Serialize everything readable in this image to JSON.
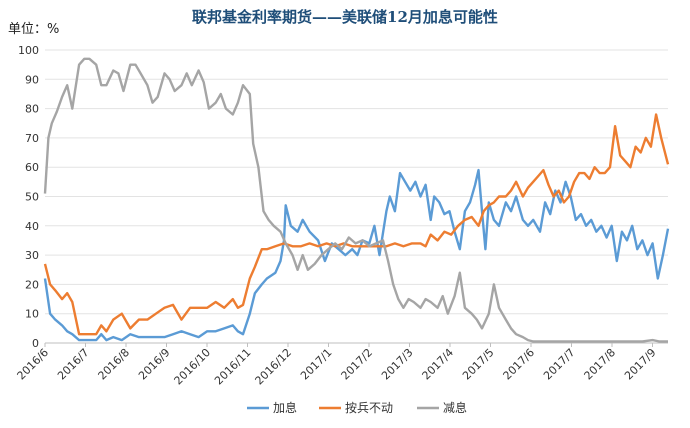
{
  "chart_data": {
    "type": "line",
    "title": "联邦基金利率期货——美联储12月加息可能性",
    "unit_label": "单位：%",
    "ylim": [
      0,
      100
    ],
    "y_ticks": [
      "0",
      "10",
      "20",
      "30",
      "40",
      "50",
      "60",
      "70",
      "80",
      "90",
      "100"
    ],
    "x_ticks": [
      "2016/6",
      "2016/7",
      "2016/8",
      "2016/9",
      "2016/10",
      "2016/11",
      "2016/12",
      "2017/1",
      "2017/2",
      "2017/3",
      "2017/4",
      "2017/5",
      "2017/6",
      "2017/7",
      "2017/8",
      "2017/9"
    ],
    "grid": true,
    "legend_position": "bottom",
    "series": [
      {
        "name": "加息",
        "color": "#5B9BD5",
        "points": [
          [
            0,
            22
          ],
          [
            0.3,
            10
          ],
          [
            0.6,
            8
          ],
          [
            1.0,
            6
          ],
          [
            1.3,
            4
          ],
          [
            1.6,
            3
          ],
          [
            2.0,
            1
          ],
          [
            2.5,
            1
          ],
          [
            3.0,
            1
          ],
          [
            3.3,
            3
          ],
          [
            3.6,
            1
          ],
          [
            4.0,
            2
          ],
          [
            4.5,
            1
          ],
          [
            5.0,
            3
          ],
          [
            5.5,
            2
          ],
          [
            6.0,
            2
          ],
          [
            6.5,
            2
          ],
          [
            7.0,
            2
          ],
          [
            7.5,
            3
          ],
          [
            8.0,
            4
          ],
          [
            8.5,
            3
          ],
          [
            9.0,
            2
          ],
          [
            9.5,
            4
          ],
          [
            10.0,
            4
          ],
          [
            10.5,
            5
          ],
          [
            11.0,
            6
          ],
          [
            11.3,
            4
          ],
          [
            11.6,
            3
          ],
          [
            12.0,
            10
          ],
          [
            12.3,
            17
          ],
          [
            12.7,
            20
          ],
          [
            13.0,
            22
          ],
          [
            13.5,
            24
          ],
          [
            13.8,
            28
          ],
          [
            14.0,
            35
          ],
          [
            14.1,
            47
          ],
          [
            14.4,
            40
          ],
          [
            14.8,
            38
          ],
          [
            15.1,
            42
          ],
          [
            15.5,
            38
          ],
          [
            16.0,
            35
          ],
          [
            16.4,
            28
          ],
          [
            16.8,
            34
          ],
          [
            17.2,
            32
          ],
          [
            17.6,
            30
          ],
          [
            18.0,
            32
          ],
          [
            18.3,
            30
          ],
          [
            18.6,
            35
          ],
          [
            19.0,
            34
          ],
          [
            19.3,
            40
          ],
          [
            19.6,
            30
          ],
          [
            20.0,
            45
          ],
          [
            20.2,
            50
          ],
          [
            20.5,
            45
          ],
          [
            20.8,
            58
          ],
          [
            21.1,
            55
          ],
          [
            21.4,
            52
          ],
          [
            21.7,
            55
          ],
          [
            22.0,
            50
          ],
          [
            22.3,
            54
          ],
          [
            22.6,
            42
          ],
          [
            22.8,
            50
          ],
          [
            23.1,
            48
          ],
          [
            23.4,
            44
          ],
          [
            23.7,
            45
          ],
          [
            24.0,
            38
          ],
          [
            24.3,
            32
          ],
          [
            24.6,
            45
          ],
          [
            24.9,
            48
          ],
          [
            25.2,
            54
          ],
          [
            25.4,
            59
          ],
          [
            25.6,
            45
          ],
          [
            25.8,
            32
          ],
          [
            26.0,
            48
          ],
          [
            26.3,
            42
          ],
          [
            26.6,
            40
          ],
          [
            27.0,
            48
          ],
          [
            27.3,
            45
          ],
          [
            27.6,
            50
          ],
          [
            28.0,
            42
          ],
          [
            28.3,
            40
          ],
          [
            28.6,
            42
          ],
          [
            29.0,
            38
          ],
          [
            29.3,
            48
          ],
          [
            29.6,
            44
          ],
          [
            29.9,
            52
          ],
          [
            30.2,
            48
          ],
          [
            30.5,
            55
          ],
          [
            30.8,
            50
          ],
          [
            31.1,
            42
          ],
          [
            31.4,
            44
          ],
          [
            31.7,
            40
          ],
          [
            32.0,
            42
          ],
          [
            32.3,
            38
          ],
          [
            32.6,
            40
          ],
          [
            32.9,
            36
          ],
          [
            33.2,
            40
          ],
          [
            33.5,
            28
          ],
          [
            33.8,
            38
          ],
          [
            34.1,
            35
          ],
          [
            34.4,
            40
          ],
          [
            34.7,
            32
          ],
          [
            35.0,
            35
          ],
          [
            35.3,
            30
          ],
          [
            35.6,
            34
          ],
          [
            35.9,
            22
          ],
          [
            36.2,
            30
          ],
          [
            36.5,
            39
          ]
        ]
      },
      {
        "name": "按兵不动",
        "color": "#ED7D31",
        "points": [
          [
            0,
            27
          ],
          [
            0.3,
            20
          ],
          [
            0.6,
            18
          ],
          [
            1.0,
            15
          ],
          [
            1.3,
            17
          ],
          [
            1.6,
            14
          ],
          [
            2.0,
            3
          ],
          [
            2.5,
            3
          ],
          [
            3.0,
            3
          ],
          [
            3.3,
            6
          ],
          [
            3.6,
            4
          ],
          [
            4.0,
            8
          ],
          [
            4.5,
            10
          ],
          [
            5.0,
            5
          ],
          [
            5.5,
            8
          ],
          [
            6.0,
            8
          ],
          [
            6.5,
            10
          ],
          [
            7.0,
            12
          ],
          [
            7.5,
            13
          ],
          [
            8.0,
            8
          ],
          [
            8.5,
            12
          ],
          [
            9.0,
            12
          ],
          [
            9.5,
            12
          ],
          [
            10.0,
            14
          ],
          [
            10.5,
            12
          ],
          [
            11.0,
            15
          ],
          [
            11.3,
            12
          ],
          [
            11.6,
            13
          ],
          [
            12.0,
            22
          ],
          [
            12.3,
            26
          ],
          [
            12.7,
            32
          ],
          [
            13.0,
            32
          ],
          [
            13.5,
            33
          ],
          [
            14.0,
            34
          ],
          [
            14.5,
            33
          ],
          [
            15.0,
            33
          ],
          [
            15.5,
            34
          ],
          [
            16.0,
            33
          ],
          [
            16.5,
            34
          ],
          [
            17.0,
            33
          ],
          [
            17.5,
            34
          ],
          [
            18.0,
            33
          ],
          [
            18.5,
            33
          ],
          [
            19.0,
            33
          ],
          [
            19.5,
            33
          ],
          [
            20.0,
            33
          ],
          [
            20.5,
            34
          ],
          [
            21.0,
            33
          ],
          [
            21.5,
            34
          ],
          [
            22.0,
            34
          ],
          [
            22.3,
            33
          ],
          [
            22.6,
            37
          ],
          [
            23.0,
            35
          ],
          [
            23.4,
            38
          ],
          [
            23.8,
            37
          ],
          [
            24.2,
            40
          ],
          [
            24.6,
            42
          ],
          [
            25.0,
            43
          ],
          [
            25.4,
            40
          ],
          [
            25.7,
            45
          ],
          [
            26.0,
            47
          ],
          [
            26.3,
            48
          ],
          [
            26.6,
            50
          ],
          [
            27.0,
            50
          ],
          [
            27.3,
            52
          ],
          [
            27.6,
            55
          ],
          [
            28.0,
            50
          ],
          [
            28.3,
            53
          ],
          [
            28.6,
            55
          ],
          [
            28.9,
            57
          ],
          [
            29.2,
            59
          ],
          [
            29.5,
            54
          ],
          [
            29.8,
            50
          ],
          [
            30.1,
            52
          ],
          [
            30.4,
            48
          ],
          [
            30.7,
            50
          ],
          [
            31.0,
            55
          ],
          [
            31.3,
            58
          ],
          [
            31.6,
            58
          ],
          [
            31.9,
            56
          ],
          [
            32.2,
            60
          ],
          [
            32.5,
            58
          ],
          [
            32.8,
            58
          ],
          [
            33.1,
            60
          ],
          [
            33.4,
            74
          ],
          [
            33.7,
            64
          ],
          [
            34.0,
            62
          ],
          [
            34.3,
            60
          ],
          [
            34.6,
            67
          ],
          [
            34.9,
            65
          ],
          [
            35.2,
            70
          ],
          [
            35.5,
            67
          ],
          [
            35.8,
            78
          ],
          [
            36.1,
            70
          ],
          [
            36.5,
            61
          ]
        ]
      },
      {
        "name": "减息",
        "color": "#A5A5A5",
        "points": [
          [
            0,
            51
          ],
          [
            0.2,
            70
          ],
          [
            0.4,
            75
          ],
          [
            0.7,
            79
          ],
          [
            1.0,
            84
          ],
          [
            1.3,
            88
          ],
          [
            1.6,
            80
          ],
          [
            2.0,
            95
          ],
          [
            2.3,
            97
          ],
          [
            2.6,
            97
          ],
          [
            3.0,
            95
          ],
          [
            3.3,
            88
          ],
          [
            3.6,
            88
          ],
          [
            4.0,
            93
          ],
          [
            4.3,
            92
          ],
          [
            4.6,
            86
          ],
          [
            5.0,
            95
          ],
          [
            5.3,
            95
          ],
          [
            5.6,
            92
          ],
          [
            6.0,
            88
          ],
          [
            6.3,
            82
          ],
          [
            6.6,
            84
          ],
          [
            7.0,
            92
          ],
          [
            7.3,
            90
          ],
          [
            7.6,
            86
          ],
          [
            8.0,
            88
          ],
          [
            8.3,
            92
          ],
          [
            8.6,
            88
          ],
          [
            9.0,
            93
          ],
          [
            9.3,
            89
          ],
          [
            9.6,
            80
          ],
          [
            10.0,
            82
          ],
          [
            10.3,
            85
          ],
          [
            10.6,
            80
          ],
          [
            11.0,
            78
          ],
          [
            11.3,
            82
          ],
          [
            11.6,
            88
          ],
          [
            12.0,
            85
          ],
          [
            12.2,
            68
          ],
          [
            12.5,
            60
          ],
          [
            12.8,
            45
          ],
          [
            13.1,
            42
          ],
          [
            13.4,
            40
          ],
          [
            13.8,
            38
          ],
          [
            14.1,
            34
          ],
          [
            14.5,
            30
          ],
          [
            14.8,
            25
          ],
          [
            15.1,
            30
          ],
          [
            15.4,
            25
          ],
          [
            15.8,
            27
          ],
          [
            16.2,
            30
          ],
          [
            16.6,
            32
          ],
          [
            17.0,
            34
          ],
          [
            17.4,
            32
          ],
          [
            17.8,
            36
          ],
          [
            18.2,
            34
          ],
          [
            18.6,
            35
          ],
          [
            19.0,
            33
          ],
          [
            19.4,
            34
          ],
          [
            19.8,
            35
          ],
          [
            20.1,
            28
          ],
          [
            20.4,
            20
          ],
          [
            20.7,
            15
          ],
          [
            21.0,
            12
          ],
          [
            21.3,
            15
          ],
          [
            21.6,
            14
          ],
          [
            22.0,
            12
          ],
          [
            22.3,
            15
          ],
          [
            22.6,
            14
          ],
          [
            23.0,
            12
          ],
          [
            23.3,
            16
          ],
          [
            23.6,
            10
          ],
          [
            24.0,
            16
          ],
          [
            24.3,
            24
          ],
          [
            24.6,
            12
          ],
          [
            25.0,
            10
          ],
          [
            25.3,
            8
          ],
          [
            25.6,
            5
          ],
          [
            26.0,
            10
          ],
          [
            26.3,
            20
          ],
          [
            26.6,
            12
          ],
          [
            27.0,
            8
          ],
          [
            27.3,
            5
          ],
          [
            27.6,
            3
          ],
          [
            28.0,
            2
          ],
          [
            28.3,
            1
          ],
          [
            28.6,
            0.5
          ],
          [
            29.0,
            0.5
          ],
          [
            29.5,
            0.5
          ],
          [
            30.0,
            0.5
          ],
          [
            31.0,
            0.5
          ],
          [
            32.0,
            0.5
          ],
          [
            33.0,
            0.5
          ],
          [
            34.0,
            0.5
          ],
          [
            35.0,
            0.5
          ],
          [
            35.6,
            1
          ],
          [
            36.0,
            0.5
          ],
          [
            36.5,
            0.5
          ]
        ]
      }
    ]
  }
}
